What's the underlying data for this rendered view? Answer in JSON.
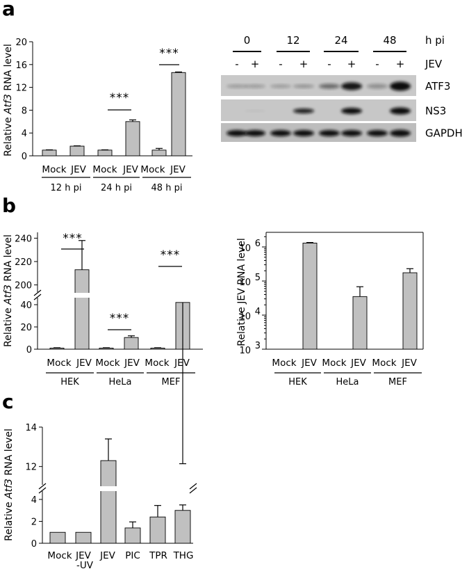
{
  "panels": {
    "a": "a",
    "b": "b",
    "c": "c"
  },
  "chart_data": [
    {
      "id": "a-left",
      "type": "bar",
      "ylabel_prefix": "Relative ",
      "ylabel_italic": "Atf3",
      "ylabel_suffix": " RNA level",
      "ylim": [
        0,
        20
      ],
      "yticks": [
        "0",
        "4",
        "8",
        "12",
        "16",
        "20"
      ],
      "categories": [
        "Mock",
        "JEV",
        "Mock",
        "JEV",
        "Mock",
        "JEV"
      ],
      "groups": [
        "12 h pi",
        "24 h pi",
        "48 h pi"
      ],
      "values": [
        1.0,
        1.7,
        1.0,
        6.0,
        1.0,
        14.6
      ],
      "errors": [
        0.05,
        0.05,
        0.05,
        0.3,
        0.3,
        0.1
      ],
      "significance": [
        "***",
        "***"
      ]
    },
    {
      "id": "b-left",
      "type": "bar",
      "ylabel_prefix": "Relative ",
      "ylabel_italic": "Atf3",
      "ylabel_suffix": " RNA level",
      "yticks_lower": [
        "0",
        "20",
        "40"
      ],
      "yticks_upper": [
        "200",
        "220",
        "240"
      ],
      "categories": [
        "Mock",
        "JEV",
        "Mock",
        "JEV",
        "Mock",
        "JEV"
      ],
      "groups": [
        "HEK",
        "HeLa",
        "MEF"
      ],
      "values": [
        1.0,
        213.0,
        1.0,
        10.5,
        1.0,
        42.0
      ],
      "errors": [
        0.3,
        25.0,
        0.3,
        1.5,
        0.3,
        5.0
      ],
      "significance": [
        "***",
        "***",
        "***"
      ]
    },
    {
      "id": "b-right",
      "type": "bar",
      "yscale": "log",
      "ylabel": "Relative JEV RNA level",
      "ylim": [
        1000,
        2000000
      ],
      "yticks": [
        {
          "base": "10",
          "exp": "3"
        },
        {
          "base": "10",
          "exp": "4"
        },
        {
          "base": "10",
          "exp": "5"
        },
        {
          "base": "10",
          "exp": "6"
        }
      ],
      "categories": [
        "Mock",
        "JEV",
        "Mock",
        "JEV",
        "Mock",
        "JEV"
      ],
      "groups": [
        "HEK",
        "HeLa",
        "MEF"
      ],
      "values": [
        1000,
        1300000,
        1000,
        35000,
        1000,
        175000
      ],
      "errors_upper": [
        1000,
        1350000,
        1000,
        68000,
        1000,
        230000
      ]
    },
    {
      "id": "c",
      "type": "bar",
      "ylabel_prefix": "Relative ",
      "ylabel_italic": "Atf3",
      "ylabel_suffix": " RNA level",
      "yticks_lower": [
        "0",
        "2",
        "4"
      ],
      "yticks_upper": [
        "12",
        "14"
      ],
      "categories": [
        "Mock",
        "JEV-UV",
        "JEV",
        "PIC",
        "TPR",
        "THG"
      ],
      "category_lines": [
        [
          "Mock"
        ],
        [
          "JEV",
          "-UV"
        ],
        [
          "JEV"
        ],
        [
          "PIC"
        ],
        [
          "TPR"
        ],
        [
          "THG"
        ]
      ],
      "values": [
        1.0,
        1.0,
        12.3,
        1.4,
        2.4,
        3.0
      ],
      "errors": [
        0,
        0,
        1.1,
        0.55,
        1.05,
        0.5
      ]
    }
  ],
  "blot": {
    "timepoints": [
      "0",
      "12",
      "24",
      "48"
    ],
    "timepoint_unit": "h pi",
    "jev_signs": [
      "-",
      "+",
      "-",
      "+",
      "-",
      "+",
      "-",
      "+"
    ],
    "jev_label": "JEV",
    "bands": [
      "ATF3",
      "NS3",
      "GAPDH"
    ]
  }
}
